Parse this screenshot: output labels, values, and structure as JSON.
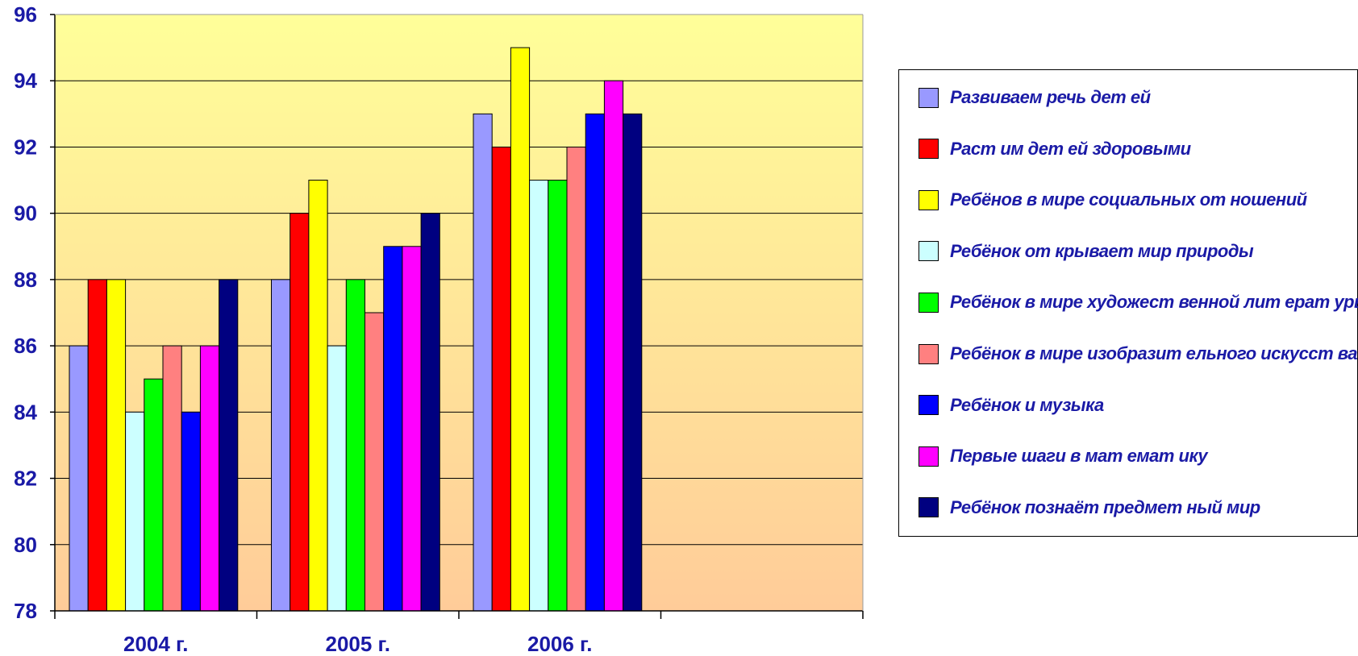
{
  "chart_data": {
    "type": "bar",
    "categories": [
      "2004 г.",
      "2005 г.",
      "2006 г.",
      ""
    ],
    "series": [
      {
        "name": "Развиваем речь дет ей",
        "color": "#9999ff",
        "values": [
          86,
          88,
          93,
          null
        ]
      },
      {
        "name": "Раст им дет ей здоровыми",
        "color": "#ff0000",
        "values": [
          88,
          90,
          92,
          null
        ]
      },
      {
        "name": "Ребёнов в мире социальных от ношений",
        "color": "#ffff00",
        "values": [
          88,
          91,
          95,
          null
        ]
      },
      {
        "name": "Ребёнок от крывает  мир природы",
        "color": "#ccffff",
        "values": [
          84,
          86,
          91,
          null
        ]
      },
      {
        "name": "Ребёнок в мире художест венной лит ерат уры",
        "color": "#00ff00",
        "values": [
          85,
          88,
          91,
          null
        ]
      },
      {
        "name": "Ребёнок в мире изобразит ельного искусст ва",
        "color": "#ff8080",
        "values": [
          86,
          87,
          92,
          null
        ]
      },
      {
        "name": "Ребёнок и музыка",
        "color": "#0000ff",
        "values": [
          84,
          89,
          93,
          null
        ]
      },
      {
        "name": "Первые шаги в мат емат ику",
        "color": "#ff00ff",
        "values": [
          86,
          89,
          94,
          null
        ]
      },
      {
        "name": "Ребёнок познаёт  предмет ный мир",
        "color": "#000080",
        "values": [
          88,
          90,
          93,
          null
        ]
      }
    ],
    "y_ticks": [
      "78",
      "80",
      "82",
      "84",
      "86",
      "88",
      "90",
      "92",
      "94",
      "96"
    ],
    "ylim": [
      78,
      96
    ],
    "grid": true,
    "legend_position": "right",
    "background_gradient": [
      "#ffff99",
      "#ffcc99"
    ]
  }
}
